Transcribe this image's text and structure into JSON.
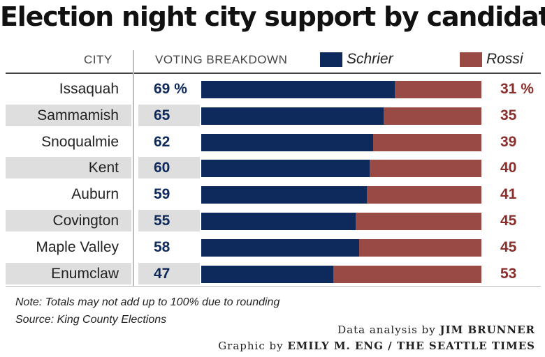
{
  "colors": {
    "schrier": "#0e2a5c",
    "rossi": "#9a4a45"
  },
  "header": {
    "city": "CITY",
    "breakdown": "VOTING BREAKDOWN"
  },
  "chart_data": {
    "type": "bar",
    "orientation": "horizontal",
    "stacked": true,
    "title": "Election night city support by candidate",
    "unit": "%",
    "categories": [
      "Issaquah",
      "Sammamish",
      "Snoqualmie",
      "Kent",
      "Auburn",
      "Covington",
      "Maple Valley",
      "Enumclaw"
    ],
    "series": [
      {
        "name": "Schrier",
        "values": [
          69,
          65,
          62,
          60,
          59,
          55,
          58,
          47
        ]
      },
      {
        "name": "Rossi",
        "values": [
          31,
          35,
          39,
          40,
          41,
          45,
          45,
          53
        ]
      }
    ],
    "value_labels": {
      "Schrier": [
        "69 %",
        "65",
        "62",
        "60",
        "59",
        "55",
        "58",
        "47"
      ],
      "Rossi": [
        "31 %",
        "35",
        "39",
        "40",
        "41",
        "45",
        "45",
        "53"
      ]
    },
    "legend": "top"
  },
  "notes": {
    "line1": "Note: Totals may not add up to 100% due to rounding",
    "line2": "Source: King County Elections"
  },
  "credits": {
    "analysis_prefix": "Data analysis by ",
    "analysis_name": "JIM BRUNNER",
    "graphic_prefix": "Graphic by ",
    "graphic_name": "EMILY M. ENG / THE SEATTLE TIMES"
  }
}
